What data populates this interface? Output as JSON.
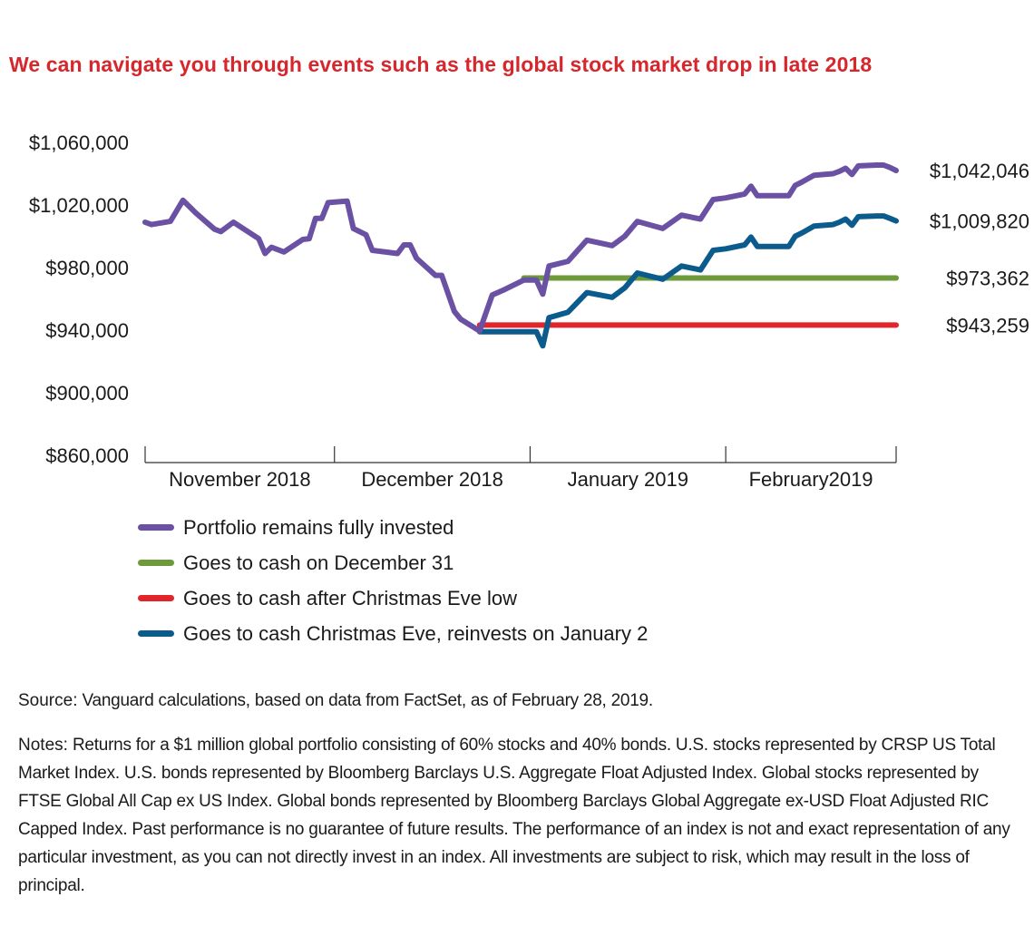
{
  "title": "We can navigate you through events such as the global stock market drop in late 2018",
  "colors": {
    "title": "#d7262c",
    "axis": "#333333"
  },
  "chart_data": {
    "type": "line",
    "ylim": [
      860000,
      1060000
    ],
    "y_ticks": [
      "$1,060,000",
      "$1,020,000",
      "$980,000",
      "$940,000",
      "$900,000",
      "$860,000"
    ],
    "y_tick_values": [
      1060000,
      1020000,
      980000,
      940000,
      900000,
      860000
    ],
    "x_ticks": [
      "November 2018",
      "December 2018",
      "January 2019",
      "February2019"
    ],
    "x_boundaries": [
      "2018-11-01",
      "2018-12-01",
      "2019-01-01",
      "2019-02-01",
      "2019-02-28"
    ],
    "grid": false,
    "series": [
      {
        "name": "Portfolio remains fully invested",
        "color": "#6a51a3",
        "end_label": "$1,042,046",
        "points": [
          [
            "2018-11-01",
            1009000
          ],
          [
            "2018-11-02",
            1007500
          ],
          [
            "2018-11-05",
            1009500
          ],
          [
            "2018-11-07",
            1023000
          ],
          [
            "2018-11-09",
            1015000
          ],
          [
            "2018-11-12",
            1004500
          ],
          [
            "2018-11-13",
            1003000
          ],
          [
            "2018-11-15",
            1009000
          ],
          [
            "2018-11-19",
            998500
          ],
          [
            "2018-11-20",
            989000
          ],
          [
            "2018-11-21",
            993000
          ],
          [
            "2018-11-23",
            990000
          ],
          [
            "2018-11-26",
            998000
          ],
          [
            "2018-11-27",
            998500
          ],
          [
            "2018-11-28",
            1011500
          ],
          [
            "2018-11-29",
            1011500
          ],
          [
            "2018-11-30",
            1021500
          ],
          [
            "2018-12-03",
            1022500
          ],
          [
            "2018-12-04",
            1005000
          ],
          [
            "2018-12-06",
            1001000
          ],
          [
            "2018-12-07",
            991000
          ],
          [
            "2018-12-10",
            989500
          ],
          [
            "2018-12-11",
            989000
          ],
          [
            "2018-12-12",
            994500
          ],
          [
            "2018-12-13",
            994500
          ],
          [
            "2018-12-14",
            986000
          ],
          [
            "2018-12-17",
            975000
          ],
          [
            "2018-12-18",
            975000
          ],
          [
            "2018-12-20",
            952000
          ],
          [
            "2018-12-21",
            947000
          ],
          [
            "2018-12-24",
            939500
          ],
          [
            "2018-12-26",
            962500
          ],
          [
            "2018-12-28",
            966000
          ],
          [
            "2018-12-31",
            972000
          ],
          [
            "2019-01-02",
            972000
          ],
          [
            "2019-01-03",
            963000
          ],
          [
            "2019-01-04",
            981000
          ],
          [
            "2019-01-07",
            984000
          ],
          [
            "2019-01-10",
            997500
          ],
          [
            "2019-01-14",
            994000
          ],
          [
            "2019-01-16",
            1000000
          ],
          [
            "2019-01-18",
            1009500
          ],
          [
            "2019-01-22",
            1005000
          ],
          [
            "2019-01-25",
            1013500
          ],
          [
            "2019-01-28",
            1011000
          ],
          [
            "2019-01-30",
            1023500
          ],
          [
            "2019-02-01",
            1024500
          ],
          [
            "2019-02-04",
            1027000
          ],
          [
            "2019-02-05",
            1032000
          ],
          [
            "2019-02-06",
            1026000
          ],
          [
            "2019-02-08",
            1026000
          ],
          [
            "2019-02-11",
            1026000
          ],
          [
            "2019-02-12",
            1032500
          ],
          [
            "2019-02-13",
            1034500
          ],
          [
            "2019-02-15",
            1039000
          ],
          [
            "2019-02-18",
            1040000
          ],
          [
            "2019-02-19",
            1041500
          ],
          [
            "2019-02-20",
            1043500
          ],
          [
            "2019-02-21",
            1039500
          ],
          [
            "2019-02-22",
            1045000
          ],
          [
            "2019-02-25",
            1045500
          ],
          [
            "2019-02-26",
            1045500
          ],
          [
            "2019-02-27",
            1044000
          ],
          [
            "2019-02-28",
            1042046
          ]
        ]
      },
      {
        "name": "Goes to cash on December 31",
        "color": "#6f9a3b",
        "end_label": "$973,362",
        "points": [
          [
            "2018-12-31",
            973362
          ],
          [
            "2019-02-28",
            973362
          ]
        ]
      },
      {
        "name": "Goes to cash after Christmas Eve low",
        "color": "#e2252b",
        "end_label": "$943,259",
        "points": [
          [
            "2018-12-24",
            943259
          ],
          [
            "2019-02-28",
            943259
          ]
        ]
      },
      {
        "name": "Goes to cash Christmas Eve, reinvests on January 2",
        "color": "#0b5c8c",
        "end_label": "$1,009,820",
        "points": [
          [
            "2018-12-24",
            939000
          ],
          [
            "2018-12-31",
            939000
          ],
          [
            "2019-01-02",
            939000
          ],
          [
            "2019-01-03",
            930000
          ],
          [
            "2019-01-04",
            948000
          ],
          [
            "2019-01-07",
            951500
          ],
          [
            "2019-01-10",
            964000
          ],
          [
            "2019-01-14",
            961000
          ],
          [
            "2019-01-16",
            967000
          ],
          [
            "2019-01-18",
            976500
          ],
          [
            "2019-01-22",
            972500
          ],
          [
            "2019-01-25",
            981000
          ],
          [
            "2019-01-28",
            978500
          ],
          [
            "2019-01-30",
            991000
          ],
          [
            "2019-02-01",
            992000
          ],
          [
            "2019-02-04",
            994500
          ],
          [
            "2019-02-05",
            999500
          ],
          [
            "2019-02-06",
            993500
          ],
          [
            "2019-02-08",
            993500
          ],
          [
            "2019-02-11",
            993500
          ],
          [
            "2019-02-12",
            1000000
          ],
          [
            "2019-02-13",
            1002000
          ],
          [
            "2019-02-15",
            1006500
          ],
          [
            "2019-02-18",
            1007500
          ],
          [
            "2019-02-19",
            1009000
          ],
          [
            "2019-02-20",
            1011000
          ],
          [
            "2019-02-21",
            1007000
          ],
          [
            "2019-02-22",
            1012500
          ],
          [
            "2019-02-25",
            1013000
          ],
          [
            "2019-02-26",
            1013000
          ],
          [
            "2019-02-27",
            1011500
          ],
          [
            "2019-02-28",
            1009820
          ]
        ]
      }
    ],
    "legend_position": "bottom-left"
  },
  "legend": [
    {
      "label": "Portfolio remains fully invested",
      "color": "#6a51a3"
    },
    {
      "label": "Goes to cash on December 31",
      "color": "#6f9a3b"
    },
    {
      "label": "Goes to cash after Christmas Eve low",
      "color": "#e2252b"
    },
    {
      "label": "Goes to cash Christmas Eve, reinvests on January 2",
      "color": "#0b5c8c"
    }
  ],
  "source": {
    "lead": "Source:",
    "text": " Vanguard calculations, based on data from FactSet, as of February 28, 2019."
  },
  "notes": {
    "lead": "Notes:",
    "text": " Returns for a $1 million global portfolio consisting of 60% stocks and 40% bonds. U.S. stocks represented by CRSP US Total Market Index. U.S. bonds represented by Bloomberg Barclays U.S. Aggregate Float Adjusted Index. Global stocks represented by FTSE Global All Cap ex US Index. Global bonds represented by Bloomberg Barclays Global Aggregate ex-USD Float Adjusted RIC Capped Index. Past performance is no guarantee of future results. The performance of an index is not and exact representation of any particular investment, as you can not directly invest in an index. All investments are subject to risk, which may result in the loss of principal."
  }
}
